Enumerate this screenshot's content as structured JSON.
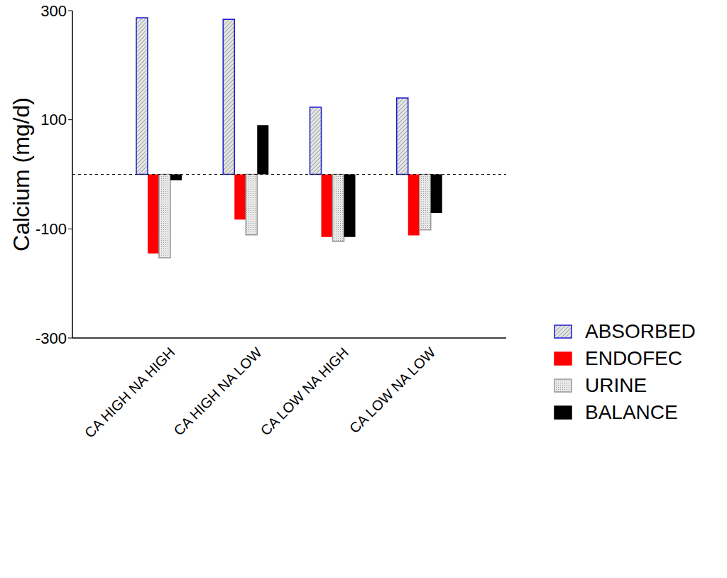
{
  "chart_data": {
    "type": "bar",
    "y_label": "Calcium (mg/d)",
    "categories": [
      "CA HIGH NA HIGH",
      "CA HIGH NA LOW",
      "CA LOW NA HIGH",
      "CA LOW NA LOW"
    ],
    "series": [
      {
        "name": "ABSORBED",
        "color": "#1a1acc",
        "values": [
          287,
          284,
          123,
          140
        ]
      },
      {
        "name": "ENDOFEC",
        "color": "#ff0000",
        "values": [
          -145,
          -83,
          -115,
          -112
        ]
      },
      {
        "name": "URINE",
        "color": "#999999",
        "values": [
          -153,
          -111,
          -123,
          -102
        ]
      },
      {
        "name": "BALANCE",
        "color": "#000000",
        "values": [
          -11,
          90,
          -115,
          -71
        ]
      }
    ],
    "ylim": [
      -300,
      300
    ],
    "yticks": [
      -300,
      -100,
      100,
      300
    ],
    "grid": false,
    "legend": "right"
  }
}
